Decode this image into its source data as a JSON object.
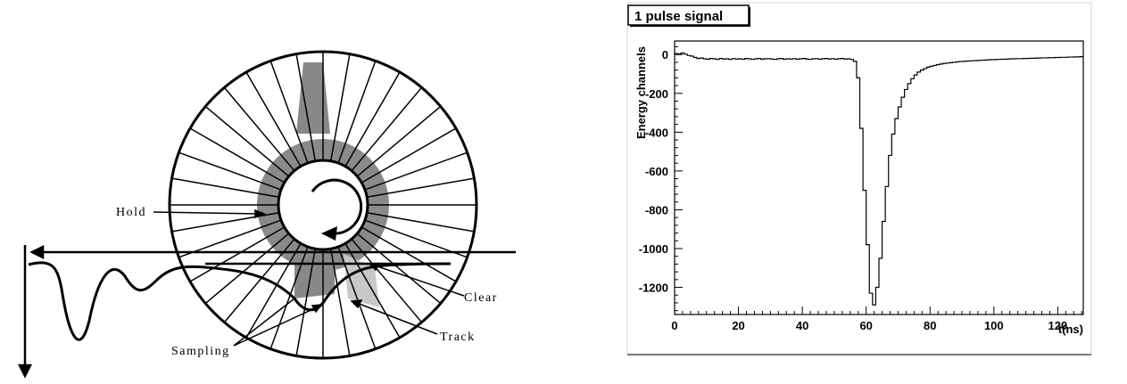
{
  "diagram": {
    "labels": {
      "hold": "Hold",
      "clear": "Clear",
      "track": "Track",
      "sampling": "Sampling"
    }
  },
  "chart_data": {
    "type": "line",
    "title": "1 pulse signal",
    "xlabel": "t(ns)",
    "ylabel": "Energy channels",
    "xlim": [
      0,
      128
    ],
    "ylim": [
      -1340,
      70
    ],
    "x_ticks": [
      "0",
      "20",
      "40",
      "60",
      "80",
      "100",
      "120"
    ],
    "y_ticks": [
      "0",
      "-200",
      "-400",
      "-600",
      "-800",
      "-1000",
      "-1200"
    ],
    "series": [
      {
        "step": 1,
        "x": [
          0,
          1,
          2,
          3,
          4,
          5,
          6,
          7,
          8,
          9,
          10,
          11,
          12,
          13,
          14,
          15,
          16,
          17,
          18,
          19,
          20,
          21,
          22,
          23,
          24,
          25,
          26,
          27,
          28,
          29,
          30,
          31,
          32,
          33,
          34,
          35,
          36,
          37,
          38,
          39,
          40,
          41,
          42,
          43,
          44,
          45,
          46,
          47,
          48,
          49,
          50,
          51,
          52,
          53,
          54,
          55,
          56,
          57,
          58,
          59,
          60,
          61,
          62,
          63,
          64,
          65,
          66,
          67,
          68,
          69,
          70,
          71,
          72,
          73,
          74,
          75,
          76,
          77,
          78,
          79,
          80,
          81,
          82,
          83,
          84,
          85,
          86,
          87,
          88,
          89,
          90,
          91,
          92,
          93,
          94,
          95,
          96,
          97,
          98,
          99,
          100,
          101,
          102,
          103,
          104,
          105,
          106,
          107,
          108,
          109,
          110,
          111,
          112,
          113,
          114,
          115,
          116,
          117,
          118,
          119,
          120,
          121,
          122,
          123,
          124,
          125,
          126,
          127
        ],
        "y": [
          5,
          3,
          8,
          2,
          -5,
          -8,
          -15,
          -20,
          -18,
          -22,
          -24,
          -20,
          -22,
          -25,
          -20,
          -23,
          -22,
          -25,
          -21,
          -23,
          -22,
          -24,
          -20,
          -22,
          -25,
          -22,
          -20,
          -24,
          -22,
          -21,
          -23,
          -25,
          -22,
          -20,
          -24,
          -22,
          -23,
          -21,
          -24,
          -22,
          -20,
          -23,
          -25,
          -22,
          -21,
          -24,
          -22,
          -20,
          -23,
          -21,
          -24,
          -22,
          -20,
          -23,
          -22,
          -25,
          -35,
          -120,
          -380,
          -700,
          -980,
          -1230,
          -1290,
          -1200,
          -1050,
          -860,
          -680,
          -520,
          -410,
          -330,
          -270,
          -220,
          -180,
          -150,
          -125,
          -105,
          -90,
          -80,
          -72,
          -65,
          -60,
          -56,
          -52,
          -49,
          -46,
          -44,
          -42,
          -40,
          -38,
          -36,
          -35,
          -34,
          -33,
          -32,
          -31,
          -30,
          -29,
          -28,
          -27,
          -26,
          -26,
          -25,
          -24,
          -24,
          -23,
          -22,
          -22,
          -21,
          -21,
          -20,
          -20,
          -19,
          -19,
          -18,
          -18,
          -17,
          -17,
          -16,
          -16,
          -15,
          -15,
          -14,
          -14,
          -13,
          -13,
          -12,
          -12,
          -11
        ]
      }
    ],
    "grid": false,
    "legend": "none"
  }
}
